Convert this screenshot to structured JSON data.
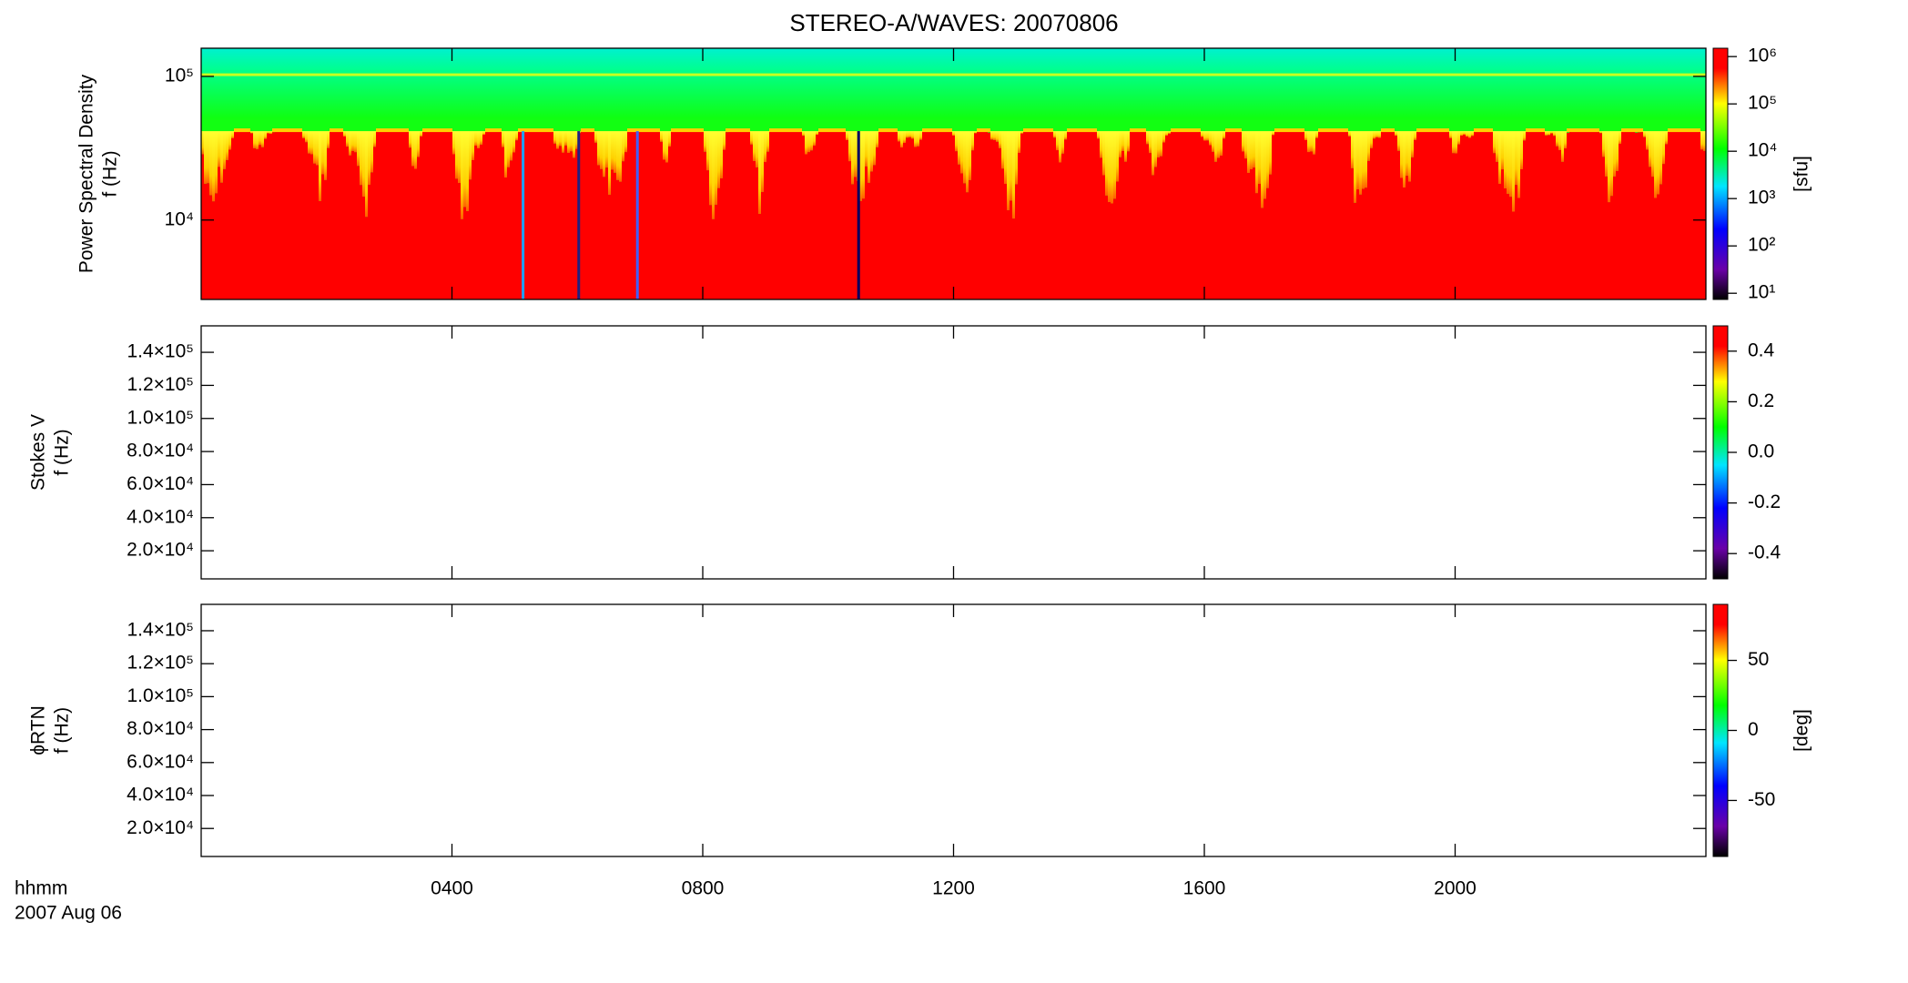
{
  "chart_data": [
    {
      "type": "spectrogram",
      "title": "STEREO-A/WAVES: 20070806",
      "ylabel": "Power Spectral Density",
      "ylabel2": "f (Hz)",
      "ylog": true,
      "ylim": [
        2800,
        157000
      ],
      "yticks": [
        {
          "value": 10000,
          "label": "10⁴"
        },
        {
          "value": 100000,
          "label": "10⁵"
        }
      ],
      "xlim": [
        0,
        24
      ],
      "colorbar": {
        "log": true,
        "lim": [
          7.4,
          1500000
        ],
        "ticks": [
          {
            "value": 10,
            "label": "10¹"
          },
          {
            "value": 100,
            "label": "10²"
          },
          {
            "value": 1000,
            "label": "10³"
          },
          {
            "value": 10000,
            "label": "10⁴"
          },
          {
            "value": 100000,
            "label": "10⁵"
          },
          {
            "value": 1000000,
            "label": "10⁶"
          }
        ],
        "label": "[sfu]"
      }
    },
    {
      "type": "spectrogram",
      "ylabel": "Stokes V",
      "ylabel2": "f (Hz)",
      "ylim": [
        3000,
        156000
      ],
      "yticks": [
        {
          "value": 20000,
          "label": "2.0×10⁴"
        },
        {
          "value": 40000,
          "label": "4.0×10⁴"
        },
        {
          "value": 60000,
          "label": "6.0×10⁴"
        },
        {
          "value": 80000,
          "label": "8.0×10⁴"
        },
        {
          "value": 100000,
          "label": "1.0×10⁵"
        },
        {
          "value": 120000,
          "label": "1.2×10⁵"
        },
        {
          "value": 140000,
          "label": "1.4×10⁵"
        }
      ],
      "xlim": [
        0,
        24
      ],
      "colorbar": {
        "lim": [
          -0.5,
          0.5
        ],
        "ticks": [
          -0.4,
          -0.2,
          {
            "value": 0,
            "label": "0.0"
          },
          0.2,
          0.4
        ]
      }
    },
    {
      "type": "spectrogram",
      "ylabel": "ϕRTN",
      "ylabel2": "f (Hz)",
      "ylim": [
        3000,
        156000
      ],
      "yticks": [
        {
          "value": 20000,
          "label": "2.0×10⁴"
        },
        {
          "value": 40000,
          "label": "4.0×10⁴"
        },
        {
          "value": 60000,
          "label": "6.0×10⁴"
        },
        {
          "value": 80000,
          "label": "8.0×10⁴"
        },
        {
          "value": 100000,
          "label": "1.0×10⁵"
        },
        {
          "value": 120000,
          "label": "1.2×10⁵"
        },
        {
          "value": 140000,
          "label": "1.4×10⁵"
        }
      ],
      "xlim": [
        0,
        24
      ],
      "xticks": [
        {
          "value": 4,
          "label": "0400"
        },
        {
          "value": 8,
          "label": "0800"
        },
        {
          "value": 12,
          "label": "1200"
        },
        {
          "value": 16,
          "label": "1600"
        },
        {
          "value": 20,
          "label": "2000"
        }
      ],
      "xlabel": "hhmm",
      "date": "2007 Aug 06",
      "colorbar": {
        "lim": [
          -90,
          90
        ],
        "ticks": [
          -50,
          0,
          50
        ],
        "label": "[deg]"
      }
    }
  ]
}
